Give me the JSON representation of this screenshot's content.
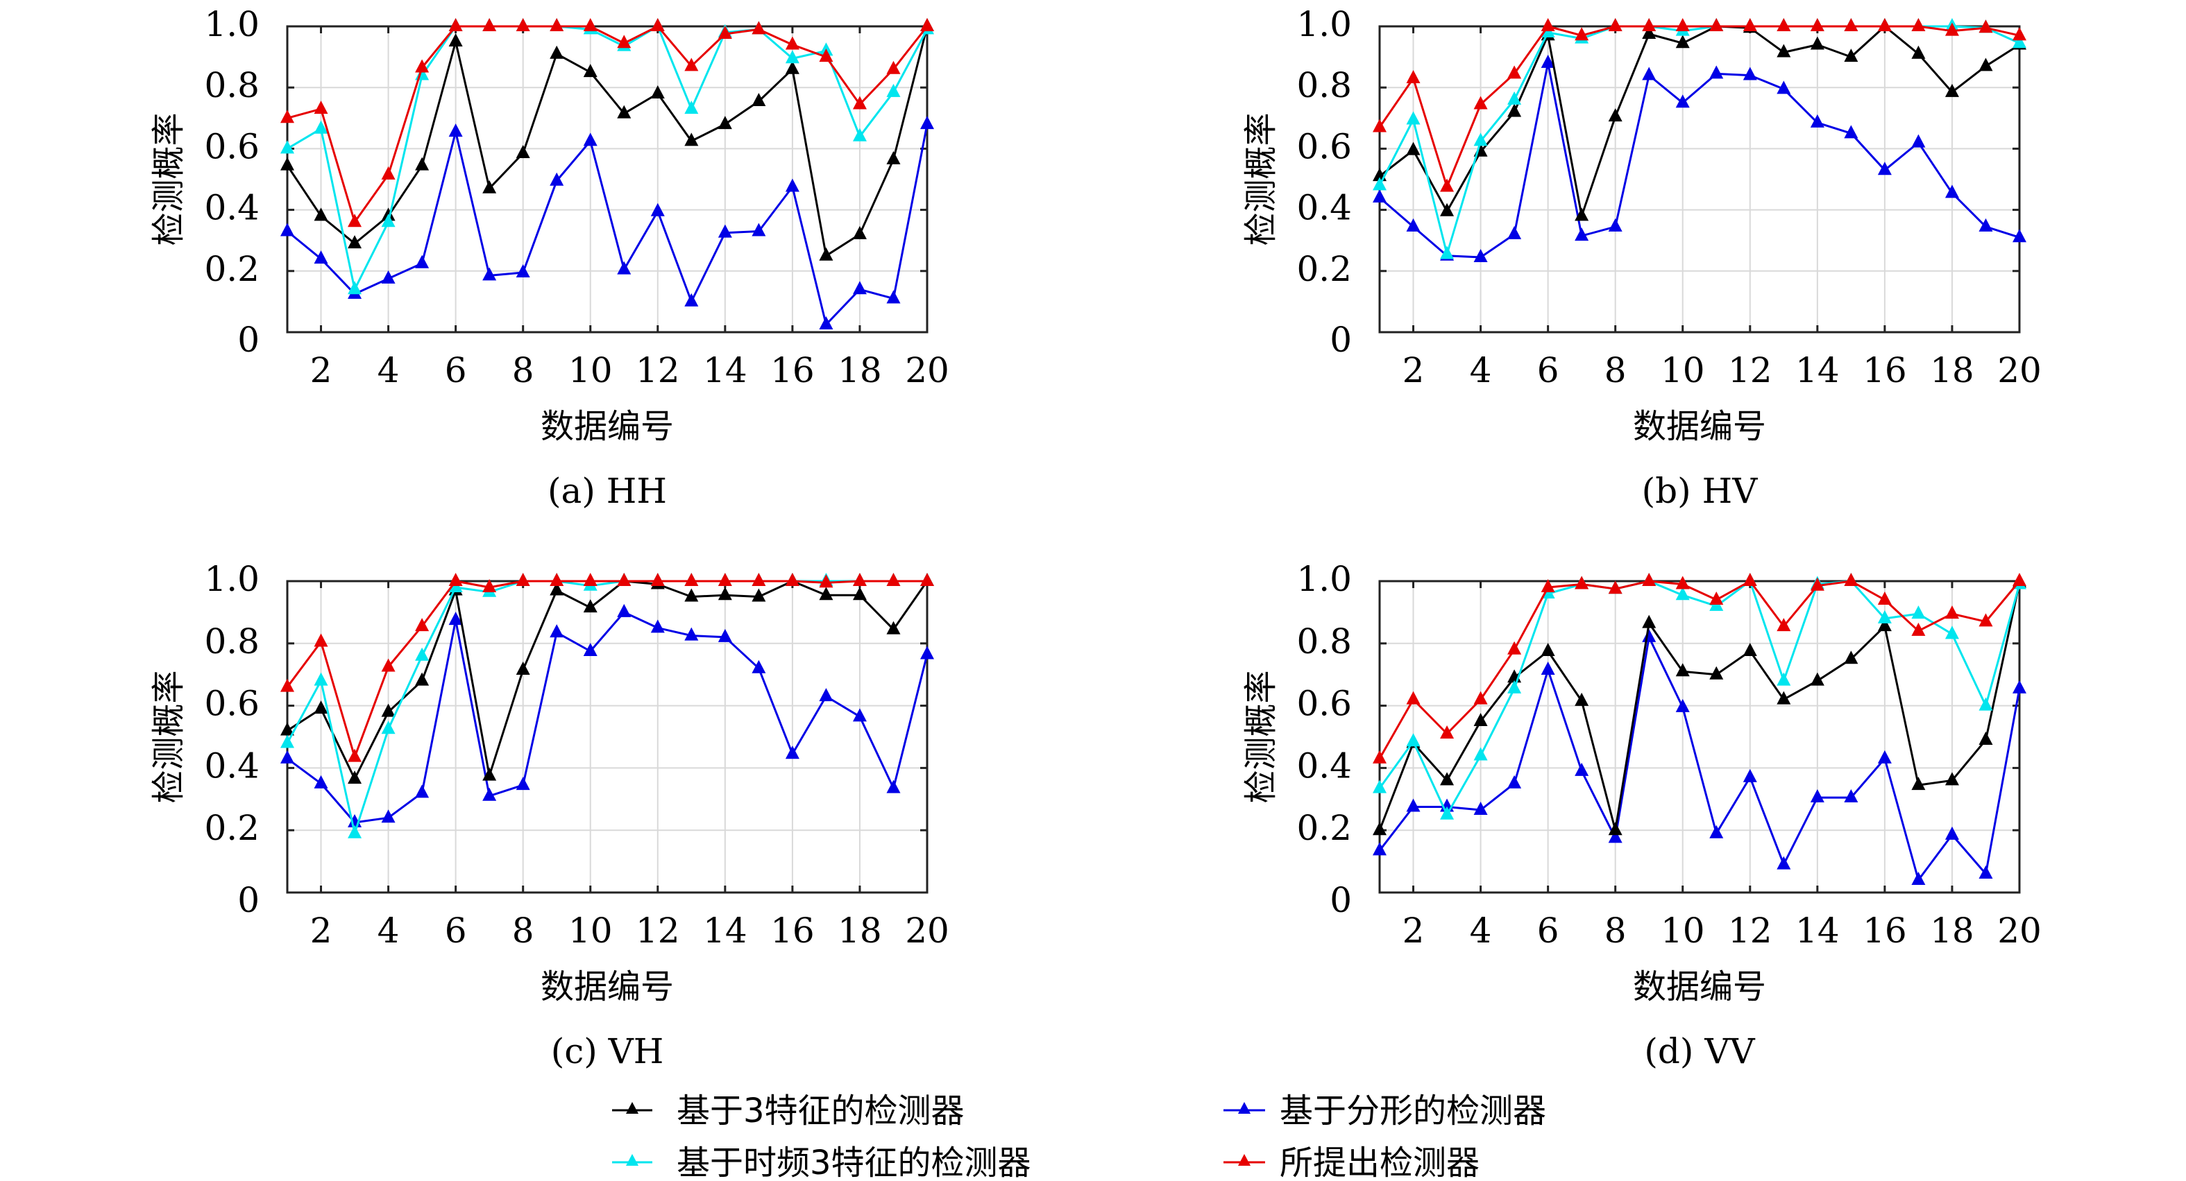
{
  "figure": {
    "legend": {
      "placement": "bottom-center",
      "entries": [
        {
          "key": "black",
          "label": "基于3特征的检测器",
          "color": "#000000"
        },
        {
          "key": "blue",
          "label": "基于分形的检测器",
          "color": "#0000e6"
        },
        {
          "key": "cyan",
          "label": "基于时频3特征的检测器",
          "color": "#00e5ee"
        },
        {
          "key": "red",
          "label": "所提出检测器",
          "color": "#e60000"
        }
      ]
    }
  },
  "chart_data": [
    {
      "type": "line",
      "title": "(a) HH",
      "xlabel": "数据编号",
      "ylabel": "检测概率",
      "xlim": [
        1,
        20
      ],
      "ylim": [
        0,
        1.0
      ],
      "xticks": [
        2,
        4,
        6,
        8,
        10,
        12,
        14,
        16,
        18,
        20
      ],
      "yticks": [
        0,
        0.2,
        0.4,
        0.6,
        0.8,
        1.0
      ],
      "ytick_labels": [
        "0",
        "0.2",
        "0.4",
        "0.6",
        "0.8",
        "1.0"
      ],
      "grid": true,
      "marker": "triangle",
      "x": [
        1,
        2,
        3,
        4,
        5,
        6,
        7,
        8,
        9,
        10,
        11,
        12,
        13,
        14,
        15,
        16,
        17,
        18,
        19,
        20
      ],
      "series": [
        {
          "name": "基于3特征的检测器",
          "color": "#000000",
          "values": [
            0.545,
            0.38,
            0.29,
            0.38,
            0.545,
            0.95,
            0.47,
            0.585,
            0.91,
            0.85,
            0.715,
            0.78,
            0.625,
            0.68,
            0.755,
            0.86,
            0.25,
            0.32,
            0.565,
            1.0
          ]
        },
        {
          "name": "基于时频3特征的检测器",
          "color": "#00e5ee",
          "values": [
            0.6,
            0.665,
            0.14,
            0.36,
            0.84,
            1.0,
            1.0,
            1.0,
            1.0,
            0.99,
            0.935,
            1.0,
            0.73,
            0.98,
            0.99,
            0.895,
            0.92,
            0.64,
            0.785,
            0.99
          ]
        },
        {
          "name": "基于分形的检测器",
          "color": "#0000e6",
          "values": [
            0.33,
            0.24,
            0.125,
            0.175,
            0.225,
            0.655,
            0.185,
            0.195,
            0.495,
            0.625,
            0.205,
            0.395,
            0.1,
            0.325,
            0.33,
            0.475,
            0.025,
            0.14,
            0.11,
            0.68
          ]
        },
        {
          "name": "所提出检测器",
          "color": "#e60000",
          "values": [
            0.7,
            0.73,
            0.36,
            0.515,
            0.865,
            1.0,
            1.0,
            1.0,
            1.0,
            1.0,
            0.945,
            1.0,
            0.87,
            0.975,
            0.99,
            0.94,
            0.9,
            0.745,
            0.86,
            1.0
          ]
        }
      ]
    },
    {
      "type": "line",
      "title": "(b) HV",
      "xlabel": "数据编号",
      "ylabel": "检测概率",
      "xlim": [
        1,
        20
      ],
      "ylim": [
        0,
        1.0
      ],
      "xticks": [
        2,
        4,
        6,
        8,
        10,
        12,
        14,
        16,
        18,
        20
      ],
      "yticks": [
        0,
        0.2,
        0.4,
        0.6,
        0.8,
        1.0
      ],
      "ytick_labels": [
        "0",
        "0.2",
        "0.4",
        "0.6",
        "0.8",
        "1.0"
      ],
      "grid": true,
      "marker": "triangle",
      "x": [
        1,
        2,
        3,
        4,
        5,
        6,
        7,
        8,
        9,
        10,
        11,
        12,
        13,
        14,
        15,
        16,
        17,
        18,
        19,
        20
      ],
      "series": [
        {
          "name": "基于3特征的检测器",
          "color": "#000000",
          "values": [
            0.51,
            0.595,
            0.395,
            0.59,
            0.72,
            0.97,
            0.38,
            0.705,
            0.975,
            0.945,
            1.0,
            0.995,
            0.915,
            0.94,
            0.9,
            1.0,
            0.91,
            0.785,
            0.87,
            0.94
          ]
        },
        {
          "name": "基于时频3特征的检测器",
          "color": "#00e5ee",
          "values": [
            0.48,
            0.695,
            0.255,
            0.625,
            0.76,
            0.98,
            0.96,
            1.0,
            1.0,
            0.985,
            1.0,
            1.0,
            1.0,
            1.0,
            1.0,
            1.0,
            1.0,
            1.0,
            0.995,
            0.945
          ]
        },
        {
          "name": "基于分形的检测器",
          "color": "#0000e6",
          "values": [
            0.44,
            0.345,
            0.25,
            0.245,
            0.32,
            0.88,
            0.315,
            0.345,
            0.84,
            0.75,
            0.845,
            0.84,
            0.795,
            0.685,
            0.65,
            0.53,
            0.62,
            0.455,
            0.345,
            0.31
          ]
        },
        {
          "name": "所提出检测器",
          "color": "#e60000",
          "values": [
            0.67,
            0.83,
            0.475,
            0.745,
            0.845,
            1.0,
            0.97,
            1.0,
            1.0,
            1.0,
            1.0,
            1.0,
            1.0,
            1.0,
            1.0,
            1.0,
            1.0,
            0.985,
            0.995,
            0.97
          ]
        }
      ]
    },
    {
      "type": "line",
      "title": "(c) VH",
      "xlabel": "数据编号",
      "ylabel": "检测概率",
      "xlim": [
        1,
        20
      ],
      "ylim": [
        0,
        1.0
      ],
      "xticks": [
        2,
        4,
        6,
        8,
        10,
        12,
        14,
        16,
        18,
        20
      ],
      "yticks": [
        0,
        0.2,
        0.4,
        0.6,
        0.8,
        1.0
      ],
      "ytick_labels": [
        "0",
        "0.2",
        "0.4",
        "0.6",
        "0.8",
        "1.0"
      ],
      "grid": true,
      "marker": "triangle",
      "x": [
        1,
        2,
        3,
        4,
        5,
        6,
        7,
        8,
        9,
        10,
        11,
        12,
        13,
        14,
        15,
        16,
        17,
        18,
        19,
        20
      ],
      "series": [
        {
          "name": "基于3特征的检测器",
          "color": "#000000",
          "values": [
            0.52,
            0.59,
            0.365,
            0.58,
            0.68,
            0.97,
            0.375,
            0.715,
            0.97,
            0.915,
            1.0,
            0.99,
            0.95,
            0.955,
            0.95,
            1.0,
            0.955,
            0.955,
            0.845,
            1.0
          ]
        },
        {
          "name": "基于时频3特征的检测器",
          "color": "#00e5ee",
          "values": [
            0.48,
            0.68,
            0.19,
            0.525,
            0.76,
            0.98,
            0.965,
            1.0,
            1.0,
            0.985,
            1.0,
            1.0,
            1.0,
            1.0,
            1.0,
            1.0,
            1.0,
            1.0,
            1.0,
            1.0
          ]
        },
        {
          "name": "基于分形的检测器",
          "color": "#0000e6",
          "values": [
            0.43,
            0.35,
            0.225,
            0.24,
            0.32,
            0.875,
            0.31,
            0.345,
            0.835,
            0.775,
            0.9,
            0.85,
            0.825,
            0.82,
            0.72,
            0.445,
            0.63,
            0.565,
            0.335,
            0.765
          ]
        },
        {
          "name": "所提出检测器",
          "color": "#e60000",
          "values": [
            0.66,
            0.805,
            0.435,
            0.725,
            0.855,
            1.0,
            0.98,
            1.0,
            1.0,
            1.0,
            1.0,
            1.0,
            1.0,
            1.0,
            1.0,
            1.0,
            0.995,
            1.0,
            1.0,
            1.0
          ]
        }
      ]
    },
    {
      "type": "line",
      "title": "(d) VV",
      "xlabel": "数据编号",
      "ylabel": "检测概率",
      "xlim": [
        1,
        20
      ],
      "ylim": [
        0,
        1.0
      ],
      "xticks": [
        2,
        4,
        6,
        8,
        10,
        12,
        14,
        16,
        18,
        20
      ],
      "yticks": [
        0,
        0.2,
        0.4,
        0.6,
        0.8,
        1.0
      ],
      "ytick_labels": [
        "0",
        "0.2",
        "0.4",
        "0.6",
        "0.8",
        "1.0"
      ],
      "grid": true,
      "marker": "triangle",
      "x": [
        1,
        2,
        3,
        4,
        5,
        6,
        7,
        8,
        9,
        10,
        11,
        12,
        13,
        14,
        15,
        16,
        17,
        18,
        19,
        20
      ],
      "series": [
        {
          "name": "基于3特征的检测器",
          "color": "#000000",
          "values": [
            0.2,
            0.48,
            0.36,
            0.55,
            0.69,
            0.775,
            0.615,
            0.2,
            0.865,
            0.71,
            0.7,
            0.775,
            0.62,
            0.68,
            0.75,
            0.855,
            0.345,
            0.36,
            0.49,
            0.995
          ]
        },
        {
          "name": "基于时频3特征的检测器",
          "color": "#00e5ee",
          "values": [
            0.335,
            0.485,
            0.25,
            0.44,
            0.655,
            0.96,
            0.99,
            0.975,
            1.0,
            0.955,
            0.92,
            1.0,
            0.68,
            0.99,
            1.0,
            0.88,
            0.895,
            0.83,
            0.6,
            0.99
          ]
        },
        {
          "name": "基于分形的检测器",
          "color": "#0000e6",
          "values": [
            0.135,
            0.275,
            0.275,
            0.265,
            0.35,
            0.715,
            0.39,
            0.175,
            0.82,
            0.595,
            0.19,
            0.37,
            0.09,
            0.305,
            0.305,
            0.43,
            0.04,
            0.185,
            0.06,
            0.655
          ]
        },
        {
          "name": "所提出检测器",
          "color": "#e60000",
          "values": [
            0.43,
            0.62,
            0.51,
            0.62,
            0.78,
            0.98,
            0.99,
            0.975,
            1.0,
            0.99,
            0.94,
            1.0,
            0.855,
            0.985,
            1.0,
            0.94,
            0.84,
            0.895,
            0.87,
            1.0
          ]
        }
      ]
    }
  ]
}
